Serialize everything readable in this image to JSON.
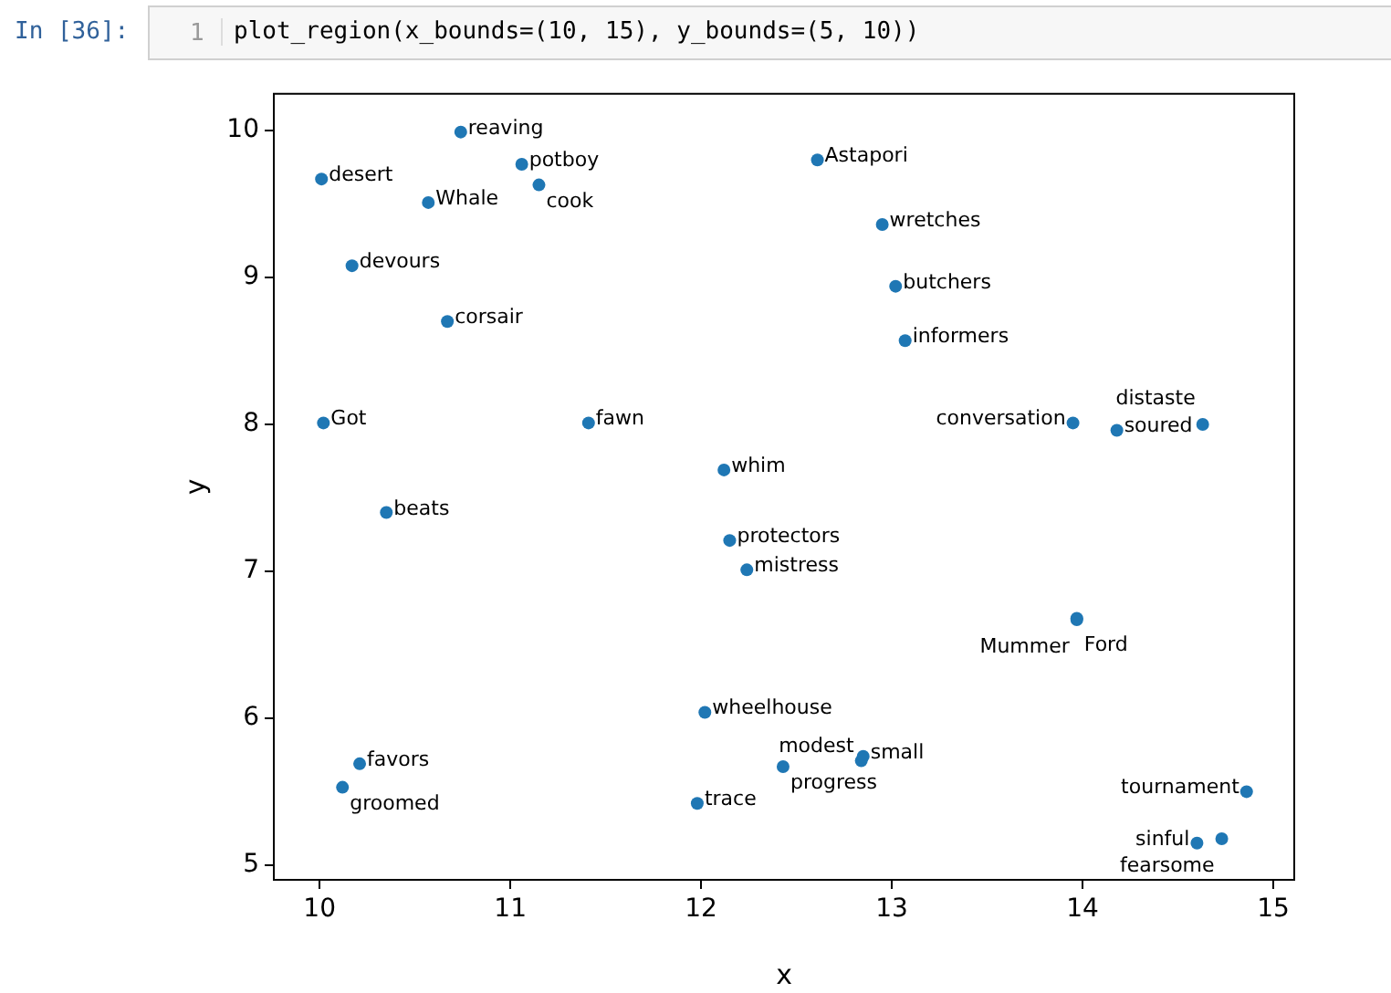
{
  "chart_data": {
    "type": "scatter",
    "xlabel": "x",
    "ylabel": "y",
    "xlim": [
      9.76,
      15.11
    ],
    "ylim": [
      4.9,
      10.25
    ],
    "xticks": [
      10,
      11,
      12,
      13,
      14,
      15
    ],
    "yticks": [
      5,
      6,
      7,
      8,
      9,
      10
    ],
    "grid": false,
    "legend": false,
    "marker": "circle",
    "annotations": [
      "In [36]:",
      "1",
      "plot_region(x_bounds=(10, 15), y_bounds=(5, 10))"
    ],
    "series": [
      {
        "name": "reaving",
        "color": "#1f77b4",
        "x": [
          10.74
        ],
        "values": [
          9.99
        ]
      },
      {
        "name": "potboy",
        "color": "#1f77b4",
        "x": [
          11.06
        ],
        "values": [
          9.77
        ]
      },
      {
        "name": "cook",
        "color": "#1f77b4",
        "x": [
          11.15
        ],
        "values": [
          9.63
        ]
      },
      {
        "name": "desert",
        "color": "#1f77b4",
        "x": [
          10.01
        ],
        "values": [
          9.67
        ]
      },
      {
        "name": "Whale",
        "color": "#1f77b4",
        "x": [
          10.57
        ],
        "values": [
          9.51
        ]
      },
      {
        "name": "devours",
        "color": "#1f77b4",
        "x": [
          10.17
        ],
        "values": [
          9.08
        ]
      },
      {
        "name": "corsair",
        "color": "#1f77b4",
        "x": [
          10.67
        ],
        "values": [
          8.7
        ]
      },
      {
        "name": "Got",
        "color": "#1f77b4",
        "x": [
          10.02
        ],
        "values": [
          8.01
        ]
      },
      {
        "name": "fawn",
        "color": "#1f77b4",
        "x": [
          11.41
        ],
        "values": [
          8.01
        ]
      },
      {
        "name": "whim",
        "color": "#1f77b4",
        "x": [
          12.12
        ],
        "values": [
          7.69
        ]
      },
      {
        "name": "beats",
        "color": "#1f77b4",
        "x": [
          10.35
        ],
        "values": [
          7.4
        ]
      },
      {
        "name": "protectors",
        "color": "#1f77b4",
        "x": [
          12.15
        ],
        "values": [
          7.21
        ]
      },
      {
        "name": "mistress",
        "color": "#1f77b4",
        "x": [
          12.24
        ],
        "values": [
          7.01
        ]
      },
      {
        "name": "Astapori",
        "color": "#1f77b4",
        "x": [
          12.61
        ],
        "values": [
          9.8
        ]
      },
      {
        "name": "wretches",
        "color": "#1f77b4",
        "x": [
          12.95
        ],
        "values": [
          9.36
        ]
      },
      {
        "name": "butchers",
        "color": "#1f77b4",
        "x": [
          13.02
        ],
        "values": [
          8.94
        ]
      },
      {
        "name": "informers",
        "color": "#1f77b4",
        "x": [
          13.07
        ],
        "values": [
          8.57
        ]
      },
      {
        "name": "conversation",
        "color": "#1f77b4",
        "x": [
          13.95
        ],
        "values": [
          8.01
        ]
      },
      {
        "name": "soured",
        "color": "#1f77b4",
        "x": [
          14.18
        ],
        "values": [
          7.96
        ]
      },
      {
        "name": "distaste",
        "color": "#1f77b4",
        "x": [
          14.63
        ],
        "values": [
          8.0
        ]
      },
      {
        "name": "Ford",
        "color": "#1f77b4",
        "x": [
          13.97
        ],
        "values": [
          6.68
        ]
      },
      {
        "name": "Mummer",
        "color": "#1f77b4",
        "x": [
          13.97
        ],
        "values": [
          6.67
        ]
      },
      {
        "name": "wheelhouse",
        "color": "#1f77b4",
        "x": [
          12.02
        ],
        "values": [
          6.04
        ]
      },
      {
        "name": "favors",
        "color": "#1f77b4",
        "x": [
          10.21
        ],
        "values": [
          5.69
        ]
      },
      {
        "name": "groomed",
        "color": "#1f77b4",
        "x": [
          10.12
        ],
        "values": [
          5.53
        ]
      },
      {
        "name": "trace",
        "color": "#1f77b4",
        "x": [
          11.98
        ],
        "values": [
          5.42
        ]
      },
      {
        "name": "progress",
        "color": "#1f77b4",
        "x": [
          12.43
        ],
        "values": [
          5.67
        ]
      },
      {
        "name": "small",
        "color": "#1f77b4",
        "x": [
          12.85
        ],
        "values": [
          5.74
        ]
      },
      {
        "name": "modest",
        "color": "#1f77b4",
        "x": [
          12.84
        ],
        "values": [
          5.71
        ]
      },
      {
        "name": "tournament",
        "color": "#1f77b4",
        "x": [
          14.86
        ],
        "values": [
          5.5
        ]
      },
      {
        "name": "sinful",
        "color": "#1f77b4",
        "x": [
          14.6
        ],
        "values": [
          5.15
        ]
      },
      {
        "name": "fearsome",
        "color": "#1f77b4",
        "x": [
          14.73
        ],
        "values": [
          5.18
        ]
      }
    ]
  }
}
